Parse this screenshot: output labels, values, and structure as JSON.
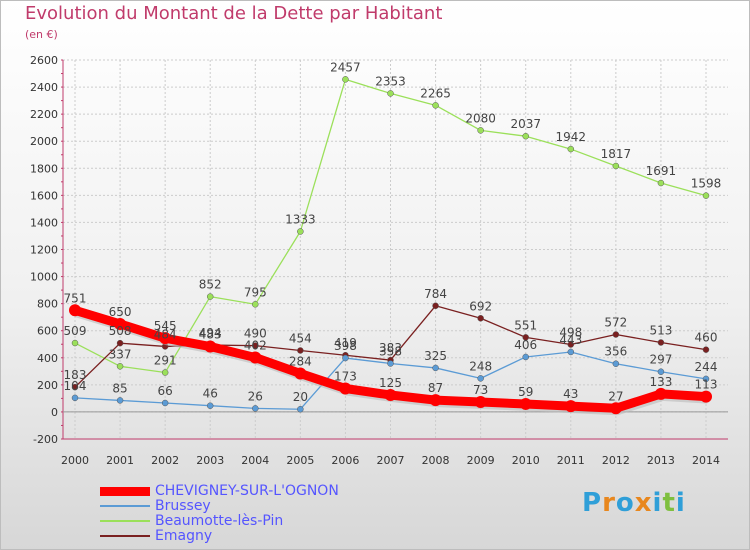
{
  "header": {
    "title": "Evolution du Montant de la Dette par Habitant",
    "unit": "(en €)"
  },
  "logo": {
    "text": "Proxiti",
    "colors": [
      "#2f9fd8",
      "#e8871e",
      "#2f9fd8",
      "#e8871e",
      "#2f9fd8",
      "#7fbf3f",
      "#2f9fd8"
    ]
  },
  "chart_data": {
    "type": "line",
    "title": "Evolution du Montant de la Dette par Habitant",
    "ylabel": "(en €)",
    "xlabel": "",
    "ylim": [
      -200,
      2600
    ],
    "yticks": [
      -200,
      0,
      200,
      400,
      600,
      800,
      1000,
      1200,
      1400,
      1600,
      1800,
      2000,
      2200,
      2400,
      2600
    ],
    "grid": true,
    "legend": "bottom-left",
    "categories": [
      "2000",
      "2001",
      "2002",
      "2003",
      "2004",
      "2005",
      "2006",
      "2007",
      "2008",
      "2009",
      "2010",
      "2011",
      "2012",
      "2013",
      "2014"
    ],
    "series": [
      {
        "name": "CHEVIGNEY-SUR-L'OGNON",
        "color": "#ff0000",
        "values": [
          751,
          650,
          545,
          483,
          402,
          284,
          173,
          125,
          87,
          73,
          59,
          43,
          27,
          133,
          113
        ],
        "labels": [
          "751",
          "650",
          "545",
          "483",
          "402",
          "284",
          "173",
          "125",
          "87",
          "73",
          "59",
          "43",
          "27",
          "133",
          "113"
        ]
      },
      {
        "name": "Brussey",
        "color": "#5b9bd5",
        "values": [
          104,
          85,
          66,
          46,
          26,
          20,
          398,
          358,
          325,
          248,
          406,
          443,
          356,
          297,
          244
        ],
        "labels": [
          "104",
          "85",
          "66",
          "46",
          "26",
          "20",
          "398",
          "358",
          "325",
          "248",
          "406",
          "443",
          "356",
          "297",
          "244"
        ]
      },
      {
        "name": "Beaumotte-lès-Pin",
        "color": "#9be05a",
        "values": [
          509,
          337,
          291,
          852,
          795,
          1333,
          2457,
          2353,
          2265,
          2080,
          2037,
          1942,
          1817,
          1691,
          1598
        ],
        "labels": [
          "509",
          "337",
          "291",
          "852",
          "795",
          "1333",
          "2457",
          "2353",
          "2265",
          "2080",
          "2037",
          "1942",
          "1817",
          "1691",
          "1598"
        ]
      },
      {
        "name": "Emagny",
        "color": "#7a2020",
        "values": [
          183,
          508,
          484,
          494,
          490,
          454,
          419,
          383,
          784,
          692,
          551,
          498,
          572,
          513,
          460
        ],
        "labels": [
          "183",
          "508",
          "484",
          "494",
          "490",
          "454",
          "419",
          "383",
          "784",
          "692",
          "551",
          "498",
          "572",
          "513",
          "460"
        ]
      }
    ]
  }
}
